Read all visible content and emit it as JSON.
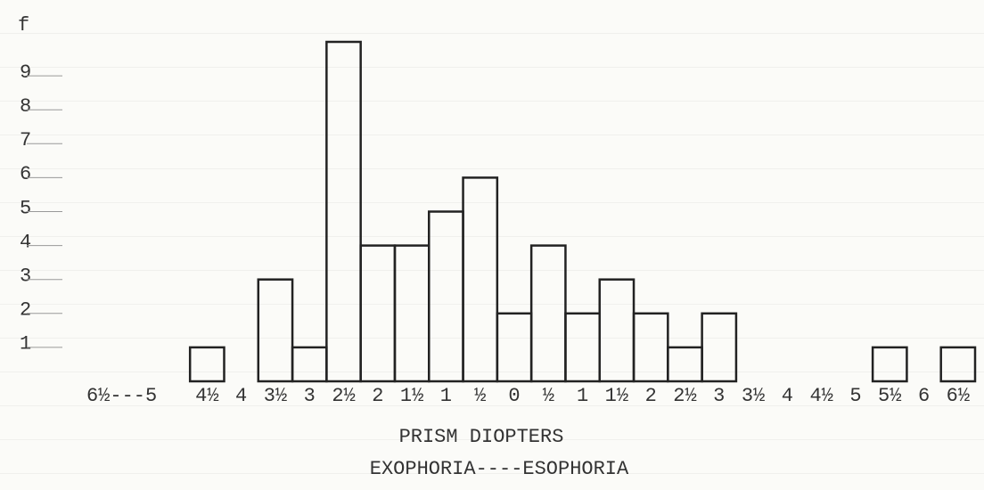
{
  "chart_data": {
    "type": "histogram",
    "y_label": "f",
    "x_label": "PRISM DIOPTERS",
    "subtitle": "EXOPHORIA----ESOPHORIA",
    "bins": [
      -6.75,
      -6.25,
      -5.75,
      -5.25,
      -4.75,
      -4.25,
      -3.75,
      -3.25,
      -2.75,
      -2.25,
      -1.75,
      -1.25,
      -0.75,
      -0.25,
      0.25,
      0.75,
      1.25,
      1.75,
      2.25,
      2.75,
      3.25,
      3.75,
      4.25,
      4.75,
      5.25,
      5.75,
      6.25,
      6.75
    ],
    "values": [
      0,
      0,
      0,
      0,
      1,
      0,
      3,
      1,
      10,
      4,
      4,
      5,
      6,
      2,
      4,
      2,
      3,
      2,
      1,
      2,
      0,
      0,
      0,
      0,
      1,
      0,
      1
    ],
    "color": "#222222",
    "xlim": [
      -6.75,
      6.75
    ],
    "ylim": [
      0,
      10
    ],
    "yticks": [
      1,
      2,
      3,
      4,
      5,
      6,
      7,
      8,
      9
    ],
    "xticks": [
      {
        "value": -5.75,
        "label": "6½---5"
      },
      {
        "value": -4.5,
        "label": "4½"
      },
      {
        "value": -4,
        "label": "4"
      },
      {
        "value": -3.5,
        "label": "3½"
      },
      {
        "value": -3,
        "label": "3"
      },
      {
        "value": -2.5,
        "label": "2½"
      },
      {
        "value": -2,
        "label": "2"
      },
      {
        "value": -1.5,
        "label": "1½"
      },
      {
        "value": -1,
        "label": "1"
      },
      {
        "value": -0.5,
        "label": "½"
      },
      0,
      {
        "value": 0.5,
        "label": "½"
      },
      1,
      {
        "value": 1.5,
        "label": "1½"
      },
      2,
      {
        "value": 2.5,
        "label": "2½"
      },
      3,
      {
        "value": 3.5,
        "label": "3½"
      },
      4,
      {
        "value": 4.5,
        "label": "4½"
      },
      5,
      {
        "value": 5.5,
        "label": "5½"
      },
      6,
      {
        "value": 6.5,
        "label": "6½"
      }
    ]
  }
}
